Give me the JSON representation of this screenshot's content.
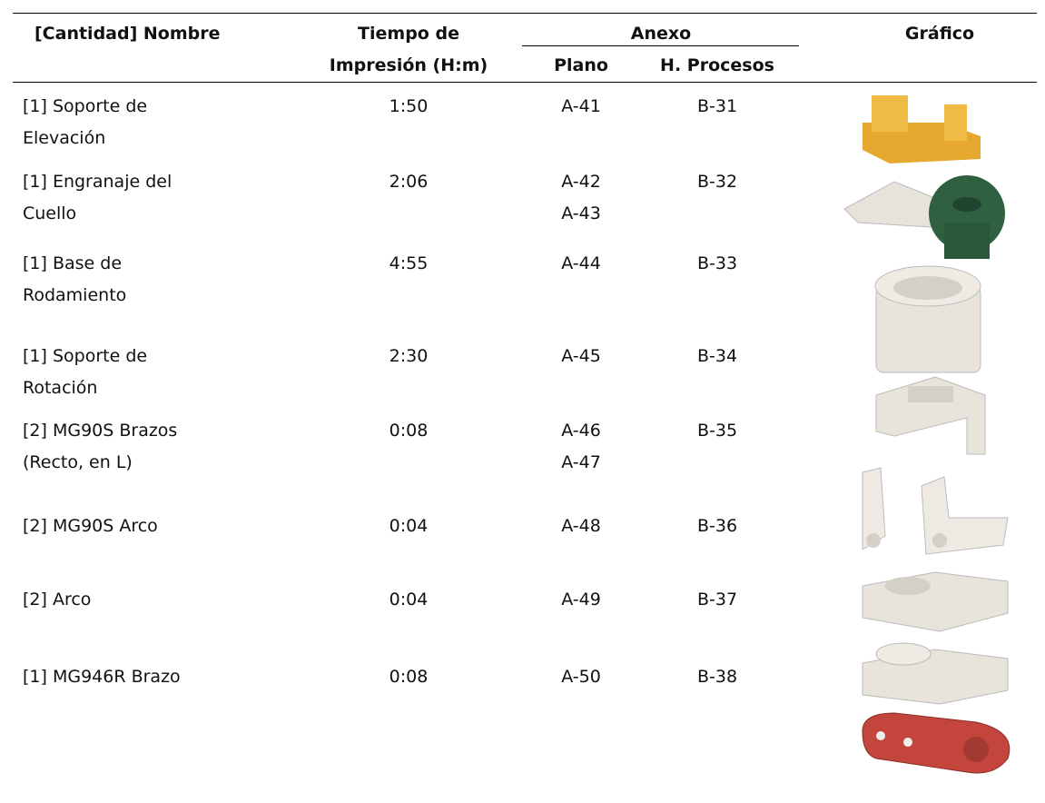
{
  "table": {
    "headers": {
      "name": "[Cantidad] Nombre",
      "time": [
        "Tiempo de",
        "Impresión (H:m)"
      ],
      "annex": "Anexo",
      "plano": "Plano",
      "procesos": "H. Procesos",
      "grafico": "Gráfico"
    },
    "rows": [
      {
        "name": [
          "[1] Soporte de",
          "Elevación"
        ],
        "time": "1:50",
        "plano": [
          "A-41"
        ],
        "procesos": "B-31"
      },
      {
        "name": [
          "[1] Engranaje del",
          "Cuello"
        ],
        "time": "2:06",
        "plano": [
          "A-42",
          "A-43"
        ],
        "procesos": "B-32"
      },
      {
        "name": [
          "[1] Base de",
          "Rodamiento"
        ],
        "time": "4:55",
        "plano": [
          "A-44"
        ],
        "procesos": "B-33"
      },
      {
        "name": [
          "[1] Soporte de",
          "Rotación"
        ],
        "time": "2:30",
        "plano": [
          "A-45"
        ],
        "procesos": "B-34"
      },
      {
        "name": [
          "[2] MG90S Brazos",
          "(Recto, en L)"
        ],
        "time": "0:08",
        "plano": [
          "A-46",
          "A-47"
        ],
        "procesos": "B-35"
      },
      {
        "name": [
          "[2] MG90S Arco"
        ],
        "time": "0:04",
        "plano": [
          "A-48"
        ],
        "procesos": "B-36"
      },
      {
        "name": [
          "[2] Arco"
        ],
        "time": "0:04",
        "plano": [
          "A-49"
        ],
        "procesos": "B-37"
      },
      {
        "name": [
          "[1] MG946R Brazo"
        ],
        "time": "0:08",
        "plano": [
          "A-50"
        ],
        "procesos": "B-38"
      }
    ]
  }
}
